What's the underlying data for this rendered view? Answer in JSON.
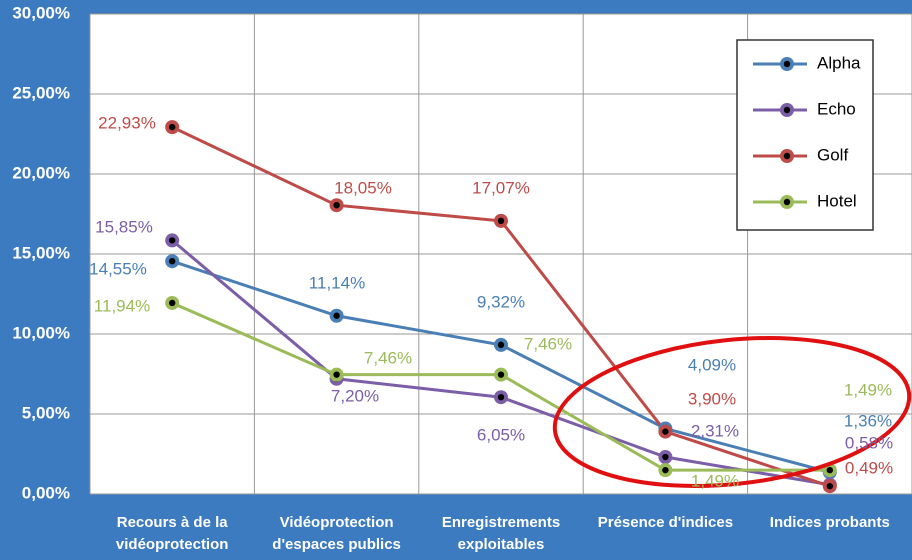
{
  "chart_data": {
    "type": "line",
    "categories": [
      "Recours à de la vidéoprotection",
      "Vidéoprotection d'espaces publics",
      "Enregistrements exploitables",
      "Présence d'indices",
      "Indices probants"
    ],
    "series": [
      {
        "name": "Alpha",
        "color": "#4a7fb5",
        "values": [
          14.55,
          11.14,
          9.32,
          4.09,
          1.36
        ],
        "value_labels": [
          "14,55%",
          "11,14%",
          "9,32%",
          "4,09%",
          "1,36%"
        ]
      },
      {
        "name": "Echo",
        "color": "#7b5ea7",
        "values": [
          15.85,
          7.2,
          6.05,
          2.31,
          0.58
        ],
        "value_labels": [
          "15,85%",
          "7,20%",
          "6,05%",
          "2,31%",
          "0,58%"
        ]
      },
      {
        "name": "Golf",
        "color": "#be4b48",
        "values": [
          22.93,
          18.05,
          17.07,
          3.9,
          0.49
        ],
        "value_labels": [
          "22,93%",
          "18,05%",
          "17,07%",
          "3,90%",
          "0,49%"
        ]
      },
      {
        "name": "Hotel",
        "color": "#9bbb59",
        "values": [
          11.94,
          7.46,
          7.46,
          1.49,
          1.49
        ],
        "value_labels": [
          "11,94%",
          "7,46%",
          "7,46%",
          "1,49%",
          "1,49%"
        ]
      }
    ],
    "ylim": [
      0,
      30
    ],
    "yticks": [
      {
        "value": 0,
        "label": "0,00%"
      },
      {
        "value": 5,
        "label": "5,00%"
      },
      {
        "value": 10,
        "label": "10,00%"
      },
      {
        "value": 15,
        "label": "15,00%"
      },
      {
        "value": 20,
        "label": "20,00%"
      },
      {
        "value": 25,
        "label": "25,00%"
      },
      {
        "value": 30,
        "label": "30,00%"
      }
    ],
    "grid": true,
    "legend": "top-right"
  }
}
